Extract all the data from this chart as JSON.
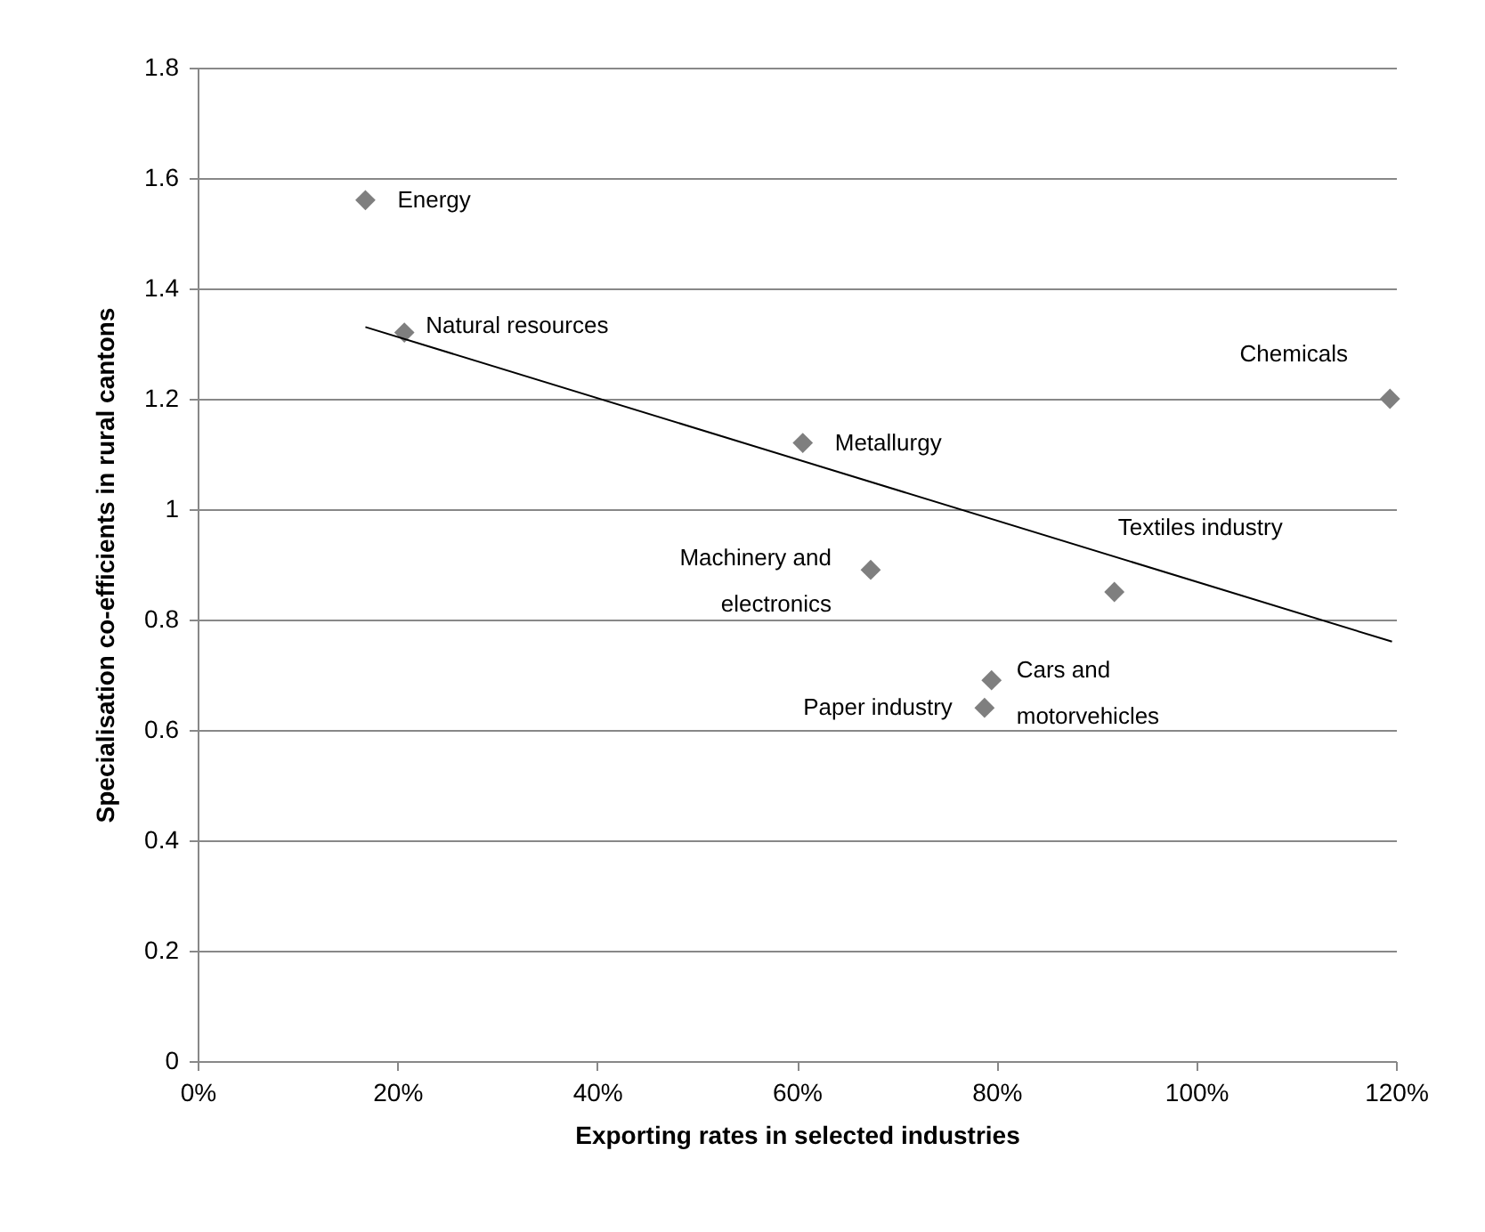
{
  "chart_data": {
    "type": "scatter",
    "xlabel": "Exporting rates in selected industries",
    "ylabel": "Specialisation co-efficients in rural cantons",
    "series": [
      {
        "type": "scatter",
        "color": "#7f7f7f",
        "marker": "diamond",
        "x": [
          16.8,
          20.7,
          60.6,
          67.4,
          91.8,
          119.4,
          79.5,
          78.8
        ],
        "values": [
          1.56,
          1.32,
          1.12,
          0.89,
          0.85,
          1.2,
          0.69,
          0.64
        ]
      },
      {
        "type": "line",
        "color": "#000000",
        "x": [
          16.8,
          119.6
        ],
        "values": [
          1.33,
          0.76
        ]
      }
    ],
    "annotations": [
      {
        "text": "Energy",
        "x": 16.8,
        "y": 1.56
      },
      {
        "text": "Natural resources",
        "x": 20.7,
        "y": 1.32
      },
      {
        "text": "Metallurgy",
        "x": 60.6,
        "y": 1.12
      },
      {
        "text": "Machinery and\nelectronics",
        "x": 67.4,
        "y": 0.89
      },
      {
        "text": "Textiles industry",
        "x": 91.8,
        "y": 0.85
      },
      {
        "text": "Chemicals",
        "x": 119.4,
        "y": 1.2
      },
      {
        "text": "Cars and\nmotorvehicles",
        "x": 79.5,
        "y": 0.69
      },
      {
        "text": "Paper industry",
        "x": 78.8,
        "y": 0.64
      }
    ],
    "xlim": [
      0,
      120
    ],
    "xticks": [
      {
        "value": 0,
        "label": "0%"
      },
      {
        "value": 20,
        "label": "20%"
      },
      {
        "value": 40,
        "label": "40%"
      },
      {
        "value": 60,
        "label": "60%"
      },
      {
        "value": 80,
        "label": "80%"
      },
      {
        "value": 100,
        "label": "100%"
      },
      {
        "value": 120,
        "label": "120%"
      }
    ],
    "ylim": [
      0,
      1.8
    ],
    "yticks": [
      0,
      0.2,
      0.4,
      0.6,
      0.8,
      1,
      1.2,
      1.4,
      1.6,
      1.8
    ],
    "grid": "y"
  }
}
